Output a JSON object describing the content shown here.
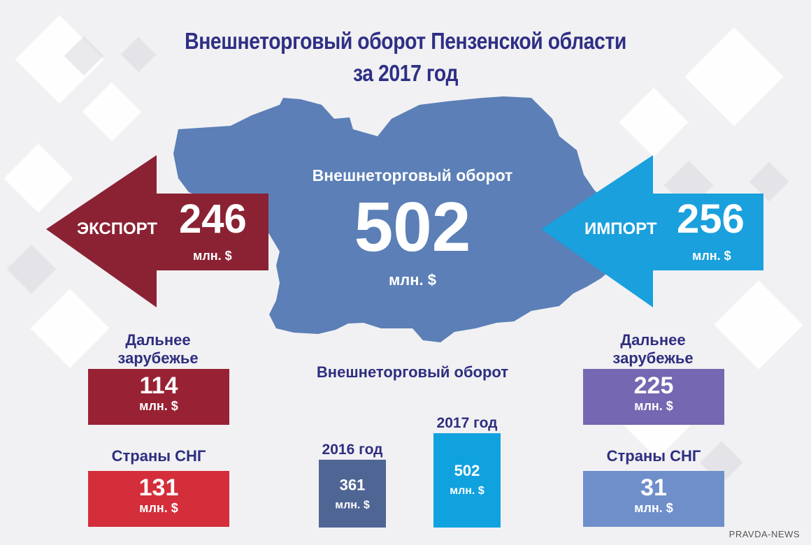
{
  "title": {
    "line1": "Внешнеторговый оборот Пензенской области",
    "line2": "за  2017 год"
  },
  "colors": {
    "title": "#2f2f86",
    "map": "#5b7fb6",
    "export": "#8b2233",
    "import": "#1aa0dd",
    "far_abroad_export": "#982234",
    "cis_export": "#d32e3a",
    "far_abroad_import": "#7567b1",
    "cis_import": "#6f8fcb",
    "year_2016": "#4f6594",
    "year_2017": "#10a2df"
  },
  "center": {
    "heading": "Внешнеторговый оборот",
    "value": "502",
    "unit": "млн. $"
  },
  "export": {
    "label": "ЭКСПОРТ",
    "value": "246",
    "unit": "млн. $"
  },
  "import": {
    "label": "ИМПОРТ",
    "value": "256",
    "unit": "млн. $"
  },
  "export_breakdown": {
    "far_label": "Дальнее зарубежье",
    "far_value": "114",
    "far_unit": "млн. $",
    "cis_label": "Страны СНГ",
    "cis_value": "131",
    "cis_unit": "млн. $"
  },
  "import_breakdown": {
    "far_label": "Дальнее зарубежье",
    "far_value": "225",
    "far_unit": "млн. $",
    "cis_label": "Страны СНГ",
    "cis_value": "31",
    "cis_unit": "млн. $"
  },
  "chart_data": {
    "type": "bar",
    "title": "Внешнеторговый оборот",
    "categories": [
      "2016 год",
      "2017 год"
    ],
    "values": [
      361,
      502
    ],
    "value_labels": [
      "361",
      "502"
    ],
    "unit": "млн. $",
    "colors": [
      "#4f6594",
      "#10a2df"
    ],
    "xlabel": "",
    "ylabel": "",
    "ylim": [
      0,
      502
    ],
    "grid": false,
    "legend": "none"
  },
  "watermark": "PRAVDA-NEWS"
}
